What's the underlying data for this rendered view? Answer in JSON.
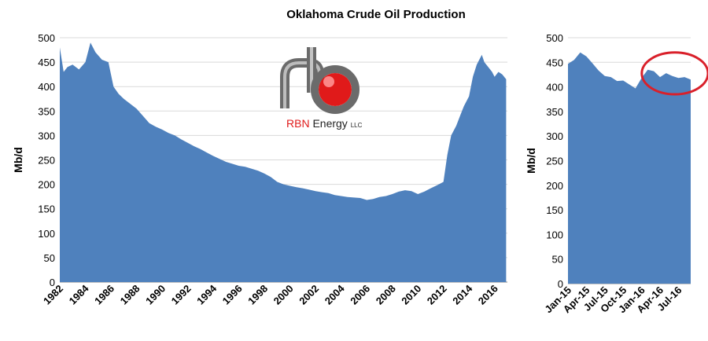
{
  "title": "Oklahoma Crude Oil Production",
  "logo": {
    "brand": "RBN",
    "rest": "Energy",
    "suffix": "LLC"
  },
  "colors": {
    "area": "#4f81bd",
    "circle": "#d9202a",
    "logo_red": "#e01a1a",
    "logo_gray": "#6b6b6b"
  },
  "chart_data": [
    {
      "type": "area",
      "ylabel": "Mb/d",
      "ylim": [
        0,
        500
      ],
      "yticks": [
        0,
        50,
        100,
        150,
        200,
        250,
        300,
        350,
        400,
        450,
        500
      ],
      "xlim": [
        1982,
        2017
      ],
      "xticks": [
        "1982",
        "1984",
        "1986",
        "1988",
        "1990",
        "1992",
        "1994",
        "1996",
        "1998",
        "2000",
        "2002",
        "2004",
        "2006",
        "2008",
        "2010",
        "2012",
        "2014",
        "2016"
      ],
      "grid": true,
      "series": [
        {
          "x": [
            1982.0,
            1982.3,
            1982.6,
            1983.0,
            1983.5,
            1984.0,
            1984.4,
            1984.8,
            1985.3,
            1985.8,
            1986.2,
            1986.6,
            1987.0,
            1987.5,
            1988.0,
            1988.5,
            1989.0,
            1989.5,
            1990.0,
            1990.5,
            1991.0,
            1991.5,
            1992.0,
            1992.5,
            1993.0,
            1993.5,
            1994.0,
            1994.5,
            1995.0,
            1995.5,
            1996.0,
            1996.5,
            1997.0,
            1997.5,
            1998.0,
            1998.5,
            1999.0,
            1999.5,
            2000.0,
            2000.5,
            2001.0,
            2001.5,
            2002.0,
            2002.5,
            2003.0,
            2003.5,
            2004.0,
            2004.5,
            2005.0,
            2005.5,
            2006.0,
            2006.5,
            2007.0,
            2007.5,
            2008.0,
            2008.5,
            2009.0,
            2009.5,
            2010.0,
            2010.5,
            2011.0,
            2011.5,
            2012.0,
            2012.3,
            2012.6,
            2013.0,
            2013.3,
            2013.6,
            2014.0,
            2014.3,
            2014.6,
            2015.0,
            2015.2,
            2015.5,
            2015.8,
            2016.0,
            2016.3,
            2016.6,
            2016.9
          ],
          "y": [
            480,
            430,
            440,
            445,
            435,
            450,
            490,
            470,
            455,
            450,
            400,
            385,
            375,
            365,
            355,
            340,
            325,
            318,
            312,
            305,
            300,
            292,
            285,
            278,
            272,
            265,
            258,
            252,
            246,
            242,
            238,
            236,
            232,
            228,
            222,
            215,
            205,
            200,
            197,
            194,
            192,
            189,
            186,
            184,
            182,
            178,
            176,
            174,
            173,
            172,
            168,
            170,
            174,
            176,
            180,
            185,
            188,
            186,
            180,
            185,
            192,
            198,
            205,
            260,
            300,
            320,
            340,
            360,
            380,
            420,
            445,
            465,
            450,
            440,
            430,
            420,
            430,
            425,
            415
          ]
        }
      ]
    },
    {
      "type": "area",
      "ylabel": "Mb/d",
      "ylim": [
        0,
        500
      ],
      "yticks": [
        0,
        50,
        100,
        150,
        200,
        250,
        300,
        350,
        400,
        450,
        500
      ],
      "categories": [
        "Jan-15",
        "Feb-15",
        "Mar-15",
        "Apr-15",
        "May-15",
        "Jun-15",
        "Jul-15",
        "Aug-15",
        "Sep-15",
        "Oct-15",
        "Nov-15",
        "Dec-15",
        "Jan-16",
        "Feb-16",
        "Mar-16",
        "Apr-16",
        "May-16",
        "Jun-16",
        "Jul-16",
        "Aug-16",
        "Sep-16"
      ],
      "xticks": [
        "Jan-15",
        "Apr-15",
        "Jul-15",
        "Oct-15",
        "Jan-16",
        "Apr-16",
        "Jul-16"
      ],
      "grid": true,
      "series": [
        {
          "values": [
            447,
            455,
            470,
            462,
            448,
            433,
            422,
            420,
            412,
            413,
            405,
            397,
            418,
            435,
            432,
            420,
            428,
            422,
            418,
            420,
            415
          ]
        }
      ],
      "annotation": {
        "type": "ellipse",
        "from": "Dec-15",
        "to": "Sep-16",
        "ylow": 385,
        "yhigh": 470
      }
    }
  ]
}
